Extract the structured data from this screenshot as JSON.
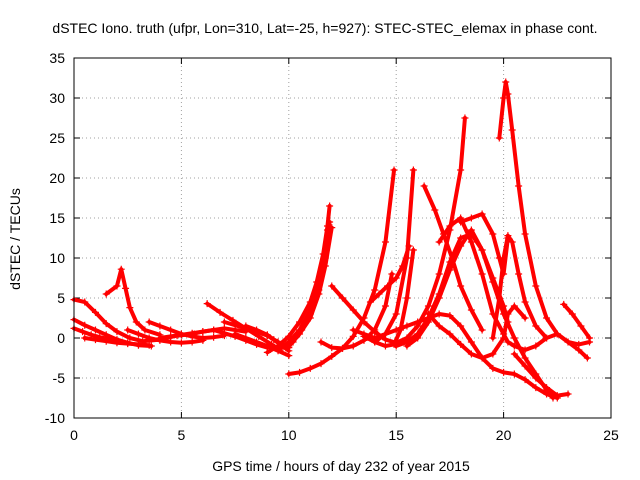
{
  "chart_data": {
    "type": "scatter",
    "title": "dSTEC Iono. truth (ufpr, Lon=310, Lat=-25, h=927): STEC-STEC_elemax in phase cont.",
    "xlabel": "GPS time / hours of day 232 of year 2015",
    "ylabel": "dSTEC  / TECUs",
    "xlim": [
      0,
      25
    ],
    "ylim": [
      -10,
      35
    ],
    "xticks": [
      0,
      5,
      10,
      15,
      20,
      25
    ],
    "yticks": [
      -10,
      -5,
      0,
      5,
      10,
      15,
      20,
      25,
      30,
      35
    ],
    "xtick_labels": [
      "0",
      "5",
      "10",
      "15",
      "20",
      "25"
    ],
    "ytick_labels": [
      "-10",
      "-5",
      "0",
      "5",
      "10",
      "15",
      "20",
      "25",
      "30",
      "35"
    ],
    "grid": true,
    "marker": "+",
    "color": "#ff0000",
    "series": [
      {
        "x": [
          0.0,
          0.5,
          1.0,
          1.5,
          2.0,
          2.6,
          3.2,
          4.0,
          4.8,
          5.6
        ],
        "y": [
          4.8,
          4.5,
          3.2,
          1.8,
          0.8,
          0.0,
          -0.4,
          -0.2,
          0.3,
          0.5
        ]
      },
      {
        "x": [
          0.0,
          0.5,
          1.0,
          1.5,
          2.0,
          2.5,
          3.0,
          3.6
        ],
        "y": [
          2.3,
          1.6,
          1.0,
          0.4,
          -0.2,
          -0.6,
          -0.9,
          -1.0
        ]
      },
      {
        "x": [
          0.0,
          0.4,
          0.8,
          1.2,
          1.6,
          2.0
        ],
        "y": [
          1.2,
          0.8,
          0.4,
          0.1,
          -0.1,
          -0.3
        ]
      },
      {
        "x": [
          0.5,
          1.0,
          1.5,
          2.0,
          2.5,
          3.0,
          3.5
        ],
        "y": [
          0.0,
          -0.2,
          -0.4,
          -0.6,
          -0.7,
          -0.8,
          -0.9
        ]
      },
      {
        "x": [
          1.5,
          2.0,
          2.2,
          2.4,
          2.6,
          2.9,
          3.3,
          4.0
        ],
        "y": [
          5.5,
          6.5,
          8.6,
          6.2,
          3.8,
          2.0,
          1.0,
          0.4
        ]
      },
      {
        "x": [
          2.5,
          3.0,
          3.5,
          4.0,
          4.5,
          5.0,
          5.5,
          6.0
        ],
        "y": [
          1.0,
          0.5,
          0.0,
          -0.3,
          -0.5,
          -0.6,
          -0.5,
          -0.3
        ]
      },
      {
        "x": [
          3.5,
          4.0,
          4.5,
          5.0,
          5.5,
          6.0,
          6.5,
          7.0
        ],
        "y": [
          2.0,
          1.5,
          1.0,
          0.5,
          0.2,
          0.0,
          0.1,
          0.3
        ]
      },
      {
        "x": [
          4.0,
          4.5,
          5.0,
          5.5,
          6.0,
          6.5,
          7.0,
          7.5,
          8.0
        ],
        "y": [
          0.0,
          0.2,
          0.4,
          0.6,
          0.8,
          1.0,
          1.2,
          1.0,
          0.8
        ]
      },
      {
        "x": [
          5.5,
          6.0,
          6.5,
          7.0,
          7.5,
          8.0,
          8.5,
          9.0
        ],
        "y": [
          0.5,
          0.8,
          1.0,
          0.6,
          0.2,
          -0.3,
          -0.8,
          -1.2
        ]
      },
      {
        "x": [
          6.2,
          6.8,
          7.4,
          8.0,
          8.6,
          9.2,
          9.6
        ],
        "y": [
          4.3,
          3.2,
          2.2,
          1.2,
          0.2,
          -0.8,
          -1.5
        ]
      },
      {
        "x": [
          7.0,
          7.5,
          8.0,
          8.5,
          9.0,
          9.5,
          10.0
        ],
        "y": [
          2.0,
          1.6,
          1.2,
          0.8,
          0.3,
          -0.5,
          -1.2
        ]
      },
      {
        "x": [
          7.5,
          8.0,
          8.5,
          9.0,
          9.5,
          10.0
        ],
        "y": [
          0.5,
          0.0,
          -0.5,
          -1.0,
          -1.6,
          -2.2
        ]
      },
      {
        "x": [
          8.0,
          8.5,
          9.0,
          9.3,
          9.6,
          10.0
        ],
        "y": [
          1.5,
          1.0,
          0.4,
          -0.2,
          -0.8,
          -1.6
        ]
      },
      {
        "x": [
          9.0,
          9.5,
          10.0,
          10.5,
          11.0,
          11.3,
          11.6,
          11.8,
          11.9
        ],
        "y": [
          -1.8,
          -1.0,
          0.2,
          2.0,
          4.5,
          7.0,
          10.5,
          14.0,
          16.5
        ]
      },
      {
        "x": [
          9.5,
          10.0,
          10.5,
          11.0,
          11.3,
          11.6,
          11.8
        ],
        "y": [
          -1.5,
          -0.5,
          1.0,
          3.5,
          6.0,
          9.5,
          13.5
        ]
      },
      {
        "x": [
          10.0,
          10.5,
          11.0,
          11.4,
          11.7,
          12.0
        ],
        "y": [
          -1.0,
          0.5,
          2.5,
          5.5,
          9.0,
          13.8
        ]
      },
      {
        "x": [
          10.2,
          10.6,
          11.0,
          11.4,
          11.7,
          11.9
        ],
        "y": [
          -0.5,
          1.0,
          3.0,
          6.0,
          10.0,
          14.5
        ]
      },
      {
        "x": [
          10.0,
          10.5,
          11.0,
          11.5,
          12.0,
          12.5,
          13.0,
          13.5,
          14.0,
          14.5,
          14.9
        ],
        "y": [
          -4.5,
          -4.3,
          -3.8,
          -3.2,
          -2.3,
          -1.3,
          0.2,
          2.5,
          6.0,
          12.0,
          21.0
        ]
      },
      {
        "x": [
          11.5,
          12.0,
          12.5,
          13.0,
          13.5,
          14.0,
          14.5,
          14.8
        ],
        "y": [
          -0.5,
          -1.2,
          -1.3,
          -1.0,
          -0.3,
          1.0,
          4.0,
          8.0
        ]
      },
      {
        "x": [
          12.0,
          12.5,
          13.0,
          13.5,
          14.0,
          14.5,
          15.0,
          15.5,
          16.0,
          16.5,
          17.0,
          17.5,
          18.0,
          18.2
        ],
        "y": [
          6.5,
          5.0,
          3.5,
          2.0,
          0.8,
          -0.2,
          -0.6,
          0.0,
          1.5,
          4.0,
          8.0,
          13.5,
          21.0,
          27.5
        ]
      },
      {
        "x": [
          13.0,
          13.5,
          14.0,
          14.5,
          15.0,
          15.5,
          15.8
        ],
        "y": [
          1.0,
          0.5,
          0.0,
          0.5,
          3.0,
          10.0,
          21.0
        ]
      },
      {
        "x": [
          13.5,
          14.0,
          14.5,
          14.9,
          15.2,
          15.5,
          15.8
        ],
        "y": [
          0.2,
          -0.5,
          -1.0,
          -0.8,
          1.0,
          5.0,
          11.0
        ]
      },
      {
        "x": [
          13.8,
          14.2,
          14.6,
          15.0,
          15.3,
          15.6
        ],
        "y": [
          4.5,
          5.5,
          6.5,
          7.5,
          9.0,
          11.5
        ]
      },
      {
        "x": [
          14.0,
          14.5,
          15.0,
          15.5,
          16.0,
          16.5,
          17.0,
          17.5,
          18.0,
          18.5,
          19.0,
          19.5,
          20.0,
          20.5,
          21.0,
          21.5,
          22.0,
          22.5
        ],
        "y": [
          -0.5,
          0.5,
          1.0,
          1.5,
          2.0,
          2.5,
          3.0,
          2.8,
          1.5,
          -0.5,
          -2.5,
          -3.8,
          -4.3,
          -4.5,
          -5.2,
          -6.2,
          -7.0,
          -7.5
        ]
      },
      {
        "x": [
          15.0,
          15.5,
          16.0,
          16.5,
          17.0,
          17.5,
          18.0,
          18.5,
          19.0,
          19.5,
          20.0,
          20.5,
          21.0,
          21.5,
          22.0,
          22.3
        ],
        "y": [
          -1.0,
          -0.5,
          0.5,
          2.5,
          5.5,
          9.5,
          12.5,
          13.0,
          11.0,
          7.0,
          3.0,
          0.0,
          -2.5,
          -4.5,
          -6.5,
          -7.5
        ]
      },
      {
        "x": [
          15.5,
          16.0,
          16.5,
          17.0,
          17.5,
          18.0,
          18.5,
          19.0,
          19.5,
          20.0,
          20.2
        ],
        "y": [
          -1.0,
          0.0,
          2.0,
          5.0,
          8.5,
          11.5,
          13.5,
          11.0,
          7.5,
          4.0,
          2.0
        ]
      },
      {
        "x": [
          16.3,
          16.8,
          17.2,
          17.6,
          18.0,
          18.5,
          19.0
        ],
        "y": [
          19.0,
          16.0,
          13.0,
          10.0,
          6.5,
          3.5,
          1.0
        ]
      },
      {
        "x": [
          16.5,
          17.0,
          17.5,
          18.0,
          18.5,
          19.0,
          19.5,
          20.0,
          20.2,
          20.5,
          21.0
        ],
        "y": [
          3.0,
          1.5,
          0.5,
          -0.8,
          -2.0,
          -2.5,
          -2.0,
          0.0,
          3.0,
          4.0,
          2.5
        ]
      },
      {
        "x": [
          17.0,
          17.5,
          18.0,
          18.5,
          19.0,
          19.5,
          20.0,
          20.2,
          20.5,
          21.0,
          21.5,
          22.0,
          22.5,
          23.0,
          23.5,
          23.9
        ],
        "y": [
          12.0,
          14.0,
          15.0,
          12.0,
          8.0,
          3.0,
          0.5,
          -0.5,
          -1.0,
          -1.5,
          -1.0,
          0.0,
          0.5,
          -0.5,
          -1.5,
          -2.5
        ]
      },
      {
        "x": [
          18.0,
          18.5,
          19.0,
          19.5,
          19.8,
          20.0,
          20.2
        ],
        "y": [
          14.5,
          15.0,
          15.5,
          13.0,
          10.0,
          8.0,
          12.5
        ]
      },
      {
        "x": [
          19.5,
          19.8,
          20.0,
          20.2,
          20.4,
          20.7,
          21.0,
          21.5,
          22.0
        ],
        "y": [
          0.0,
          5.0,
          10.0,
          12.8,
          12.0,
          8.0,
          4.5,
          1.5,
          0.0
        ]
      },
      {
        "x": [
          19.8,
          20.0,
          20.1,
          20.2,
          20.4,
          20.7,
          21.0,
          21.5,
          22.0,
          22.5,
          23.0,
          23.5,
          24.0
        ],
        "y": [
          25.0,
          30.0,
          32.0,
          30.5,
          26.0,
          19.0,
          13.0,
          6.5,
          2.5,
          0.5,
          -0.5,
          -0.8,
          -0.5
        ]
      },
      {
        "x": [
          20.5,
          21.0,
          21.5,
          22.0,
          22.5,
          23.0
        ],
        "y": [
          -2.0,
          -3.5,
          -5.0,
          -6.2,
          -7.2,
          -7.0
        ]
      },
      {
        "x": [
          22.8,
          23.2,
          23.6,
          24.0
        ],
        "y": [
          4.2,
          3.0,
          1.5,
          0.0
        ]
      }
    ]
  }
}
